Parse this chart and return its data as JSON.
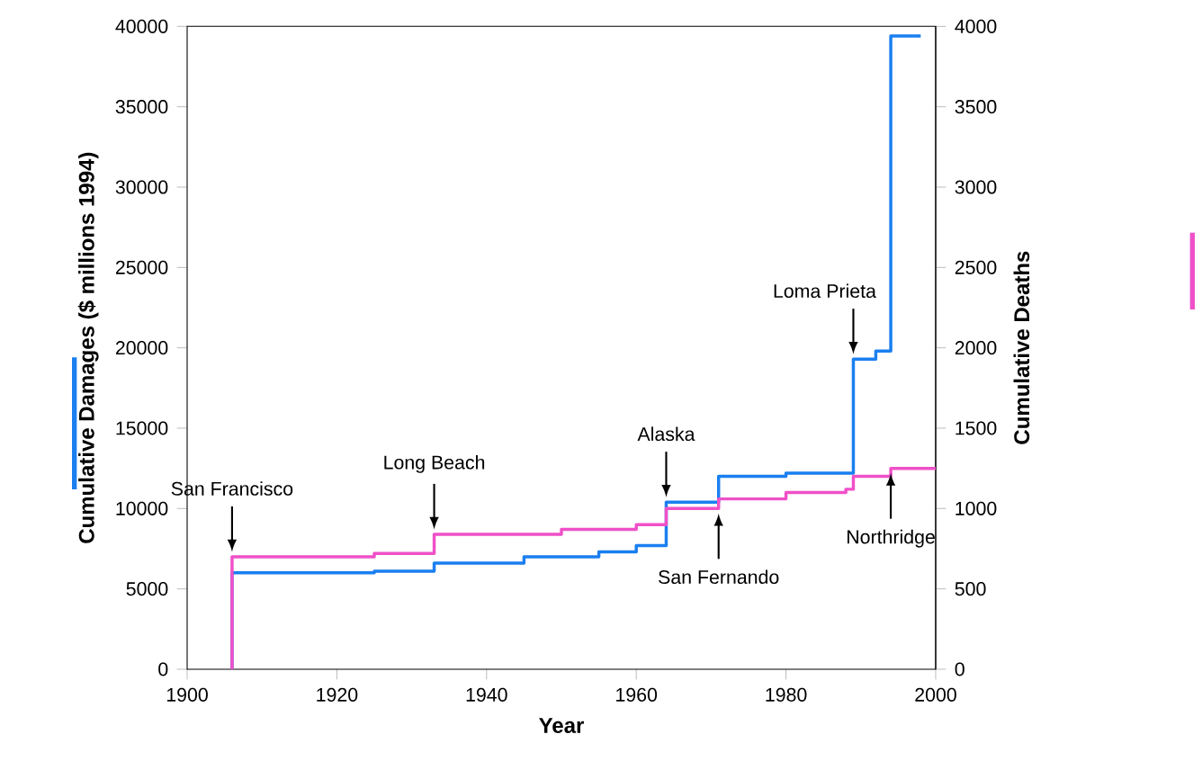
{
  "chart_data": {
    "type": "step",
    "xlabel": "Year",
    "ylabel": "Cumulative Damages ($ millions 1994)",
    "y2label": "Cumulative Deaths",
    "series": [
      {
        "color": "#1a7ff0",
        "axis": "y",
        "x": [
          1906,
          1906,
          1925,
          1933,
          1945,
          1955,
          1960,
          1964,
          1971,
          1980,
          1989,
          1992,
          1994,
          1998
        ],
        "values": [
          0,
          6000,
          6100,
          6600,
          7000,
          7300,
          7700,
          10400,
          12000,
          12200,
          19300,
          19800,
          39400,
          39400
        ]
      },
      {
        "color": "#f050c8",
        "axis": "y2",
        "x": [
          1906,
          1906,
          1925,
          1933,
          1950,
          1960,
          1964,
          1971,
          1980,
          1988,
          1989,
          1994,
          2000
        ],
        "values": [
          0,
          700,
          720,
          840,
          870,
          900,
          1000,
          1060,
          1100,
          1120,
          1200,
          1250,
          1250
        ]
      }
    ],
    "annotations": [
      {
        "text": "San Francisco",
        "x": 1906,
        "y": 7000
      },
      {
        "text": "Long Beach",
        "x": 1933,
        "y": 8400
      },
      {
        "text": "Alaska",
        "x": 1964,
        "y": 10400
      },
      {
        "text": "San Fernando",
        "x": 1971,
        "y": 10000
      },
      {
        "text": "Loma Prieta",
        "x": 1989,
        "y": 19300
      },
      {
        "text": "Northridge",
        "x": 1994,
        "y": 12500
      }
    ],
    "xlim": [
      1900,
      2000
    ],
    "xticks": [
      1900,
      1920,
      1940,
      1960,
      1980,
      2000
    ],
    "ylim": [
      0,
      40000
    ],
    "yticks": [
      0,
      5000,
      10000,
      15000,
      20000,
      25000,
      30000,
      35000,
      40000
    ],
    "y2lim": [
      0,
      4000
    ],
    "y2ticks": [
      0,
      500,
      1000,
      1500,
      2000,
      2500,
      3000,
      3500,
      4000
    ],
    "marker": "none",
    "line_style": "solid"
  }
}
